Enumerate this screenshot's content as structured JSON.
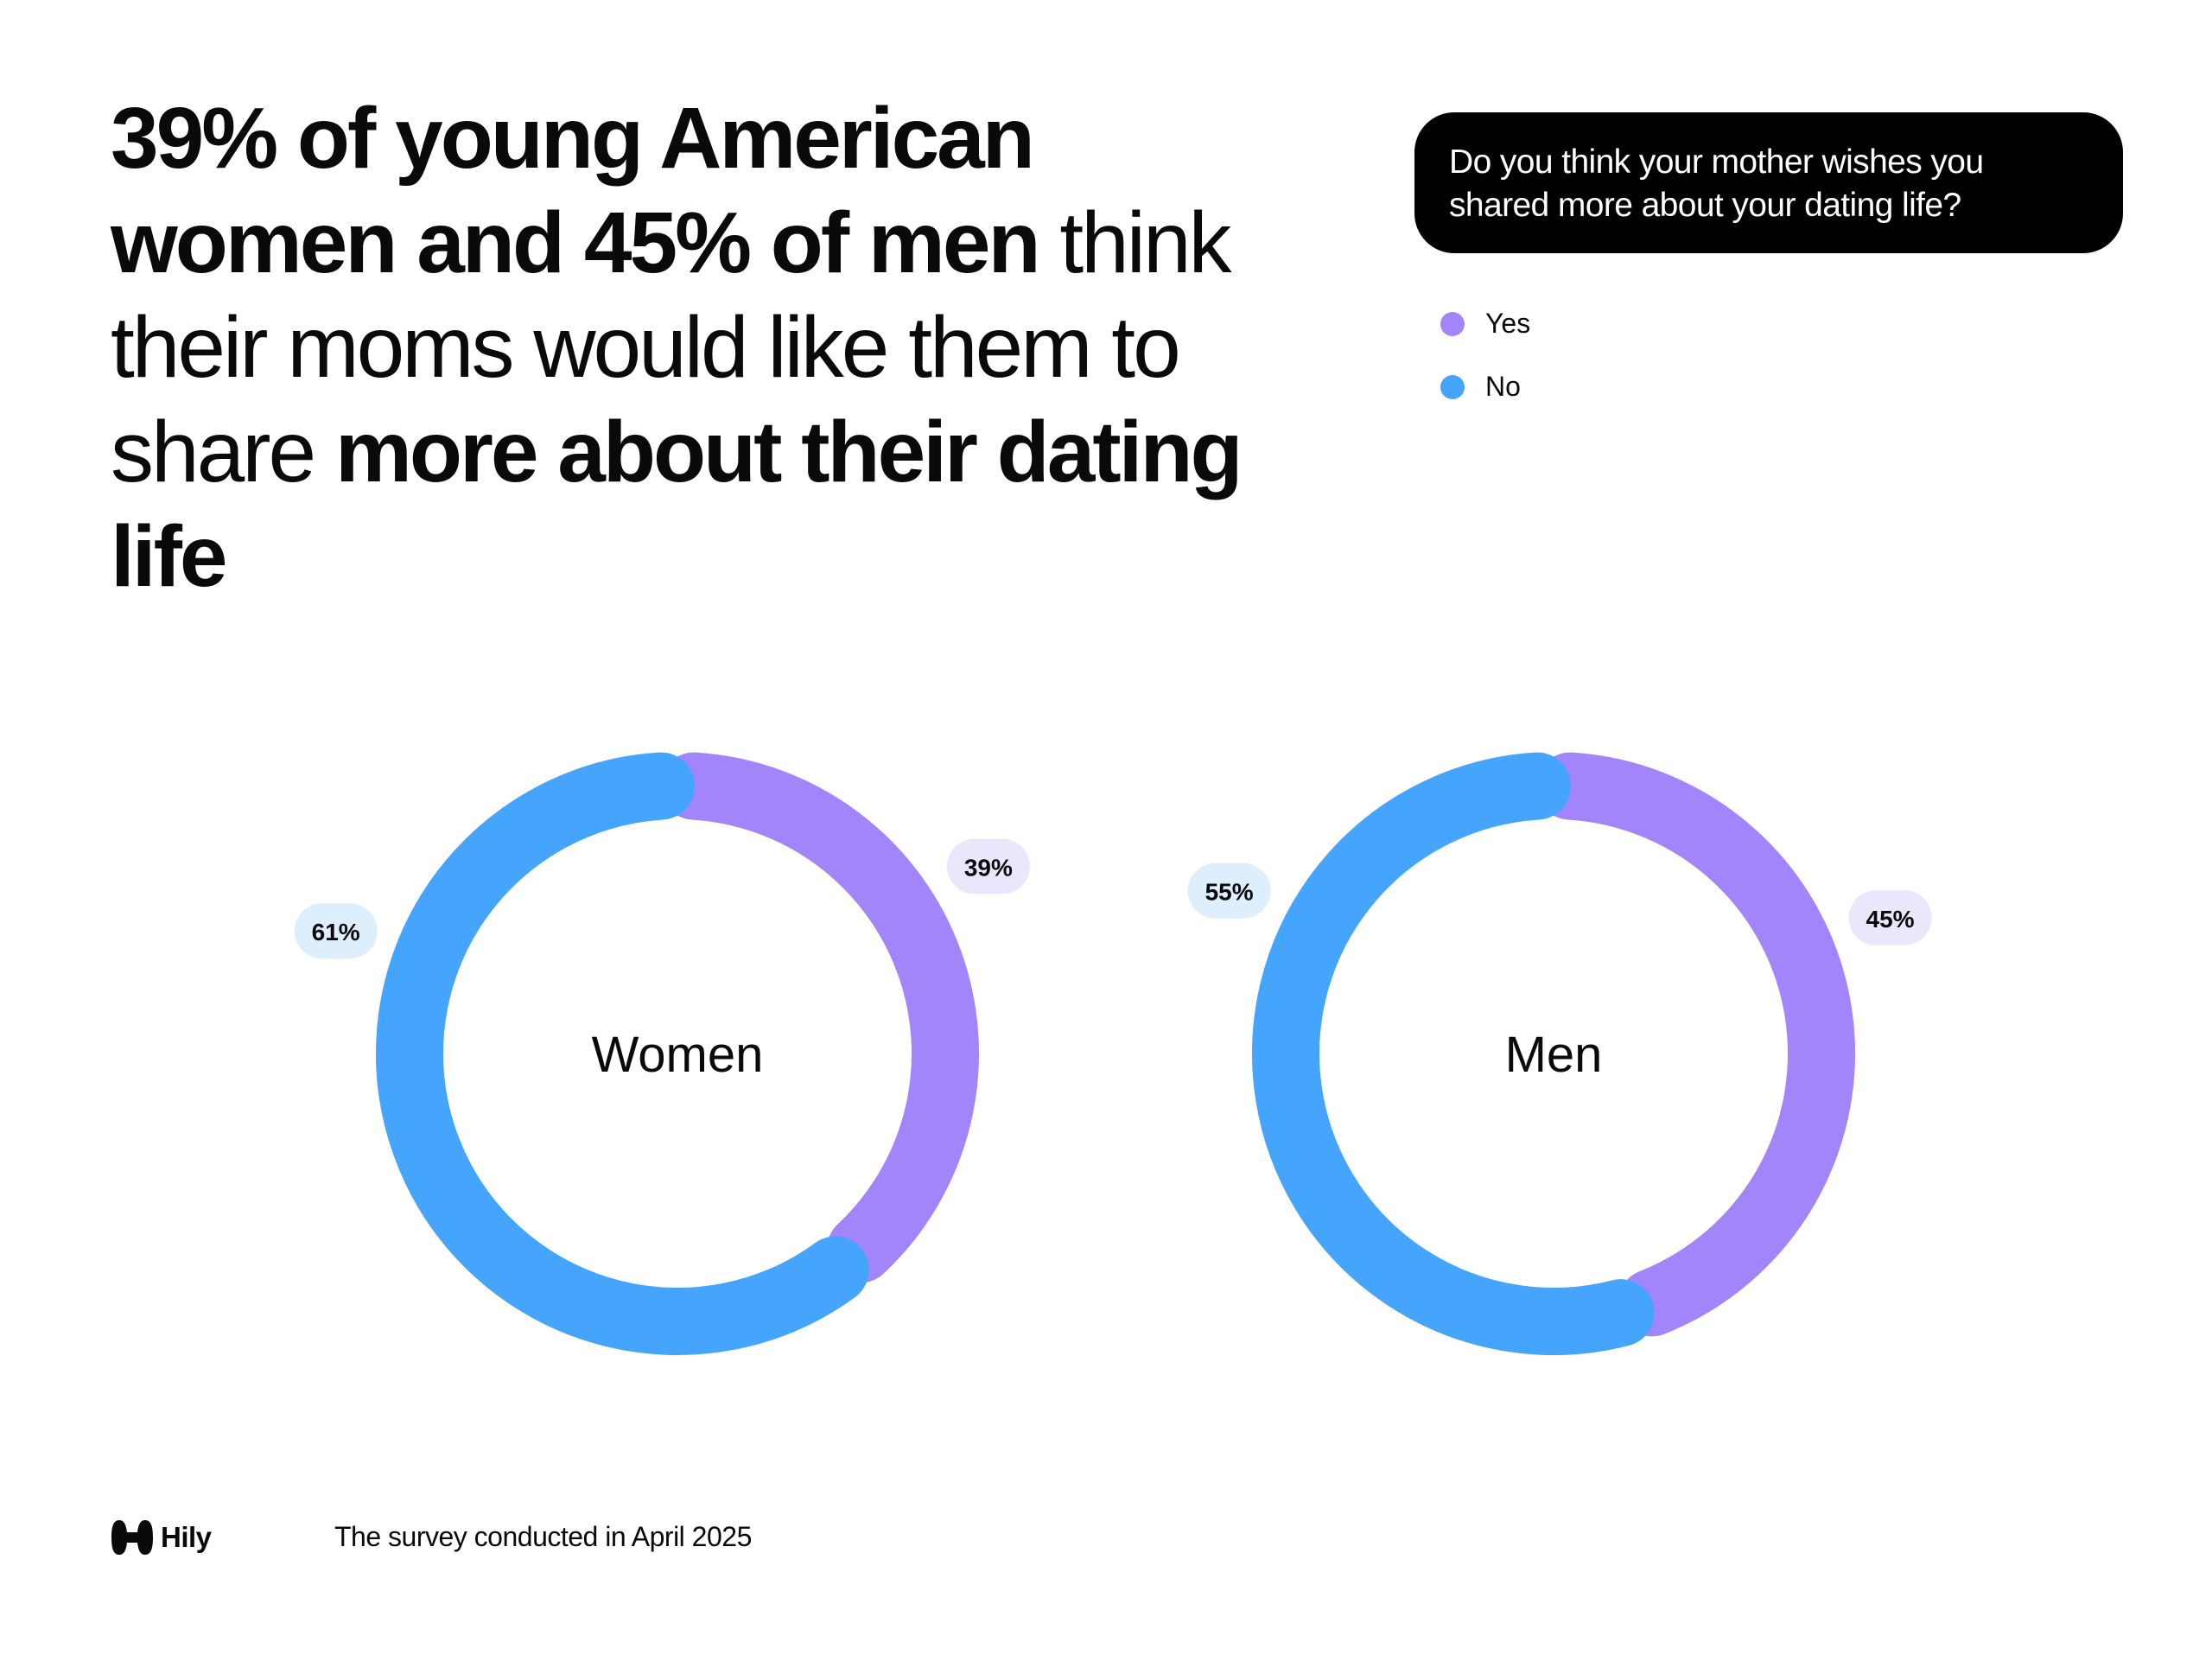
{
  "headline": {
    "parts": [
      {
        "text": "39% of young American women and 45% of men",
        "bold": true
      },
      {
        "text": " think their moms would like them to share ",
        "bold": false
      },
      {
        "text": "more about their dating life",
        "bold": true
      }
    ]
  },
  "question": "Do you think your mother wishes you shared more about your dating life?",
  "legend": [
    {
      "label": "Yes",
      "color": "#A385FB"
    },
    {
      "label": "No",
      "color": "#45A4FB"
    }
  ],
  "chart_data": [
    {
      "type": "pie",
      "variant": "donut",
      "title": "Women",
      "categories": [
        "Yes",
        "No"
      ],
      "values": [
        39,
        61
      ],
      "labels": [
        "39%",
        "61%"
      ],
      "colors": [
        "#A385FB",
        "#45A4FB"
      ]
    },
    {
      "type": "pie",
      "variant": "donut",
      "title": "Men",
      "categories": [
        "Yes",
        "No"
      ],
      "values": [
        45,
        55
      ],
      "labels": [
        "45%",
        "55%"
      ],
      "colors": [
        "#A385FB",
        "#45A4FB"
      ]
    }
  ],
  "footer": {
    "brand": "Hily",
    "note": "The survey conducted in April 2025"
  }
}
